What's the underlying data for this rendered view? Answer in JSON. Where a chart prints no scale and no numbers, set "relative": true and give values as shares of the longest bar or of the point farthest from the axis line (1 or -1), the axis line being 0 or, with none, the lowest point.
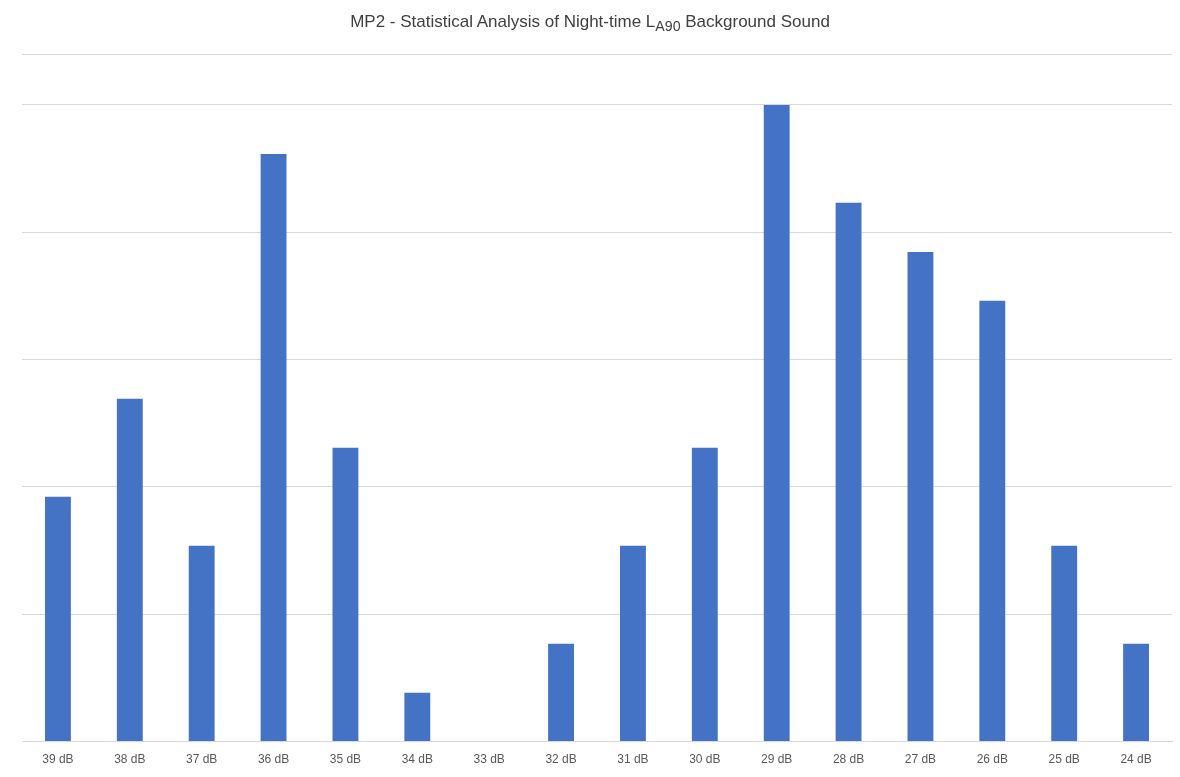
{
  "chart_data": {
    "type": "bar",
    "title": "MP2 - Statistical Analysis of Night-time L$_{A90}$ Background Sound",
    "categories": [
      "39 dB",
      "38 dB",
      "37 dB",
      "36 dB",
      "35 dB",
      "34 dB",
      "33 dB",
      "32 dB",
      "31 dB",
      "30 dB",
      "29 dB",
      "28 dB",
      "27 dB",
      "26 dB",
      "25 dB",
      "24 dB"
    ],
    "values": [
      0.3846,
      0.5385,
      0.3077,
      0.9231,
      0.4615,
      0.0769,
      0,
      0.1538,
      0.3077,
      0.4615,
      1,
      0.8462,
      0.7692,
      0.6923,
      0.3077,
      0.1538
    ],
    "color": "#4472c4",
    "relative": true,
    "grid": "y",
    "legend": false
  }
}
